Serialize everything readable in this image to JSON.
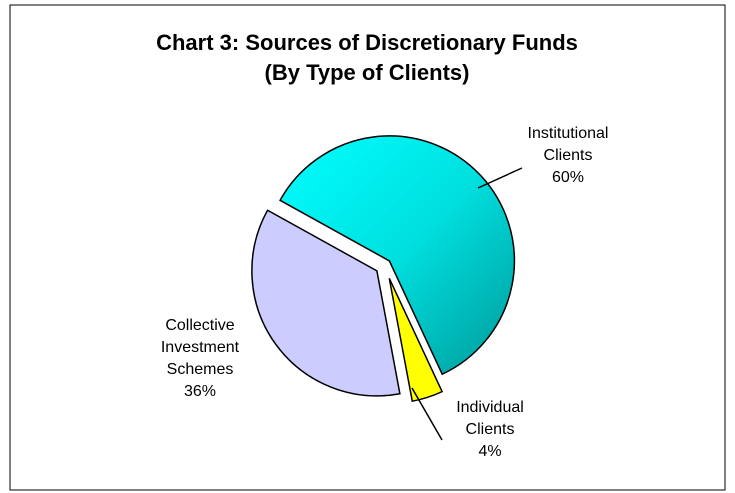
{
  "chart_data": {
    "type": "pie",
    "title": "Chart 3: Sources of Discretionary Funds",
    "subtitle": "(By Type of Clients)",
    "categories": [
      "Institutional Clients",
      "Individual Clients",
      "Collective Investment Schemes"
    ],
    "values": [
      60,
      4,
      36
    ],
    "value_labels": [
      "60%",
      "4%",
      "36%"
    ],
    "colors": [
      "#00e8e8",
      "#ffff00",
      "#ccccff"
    ]
  }
}
